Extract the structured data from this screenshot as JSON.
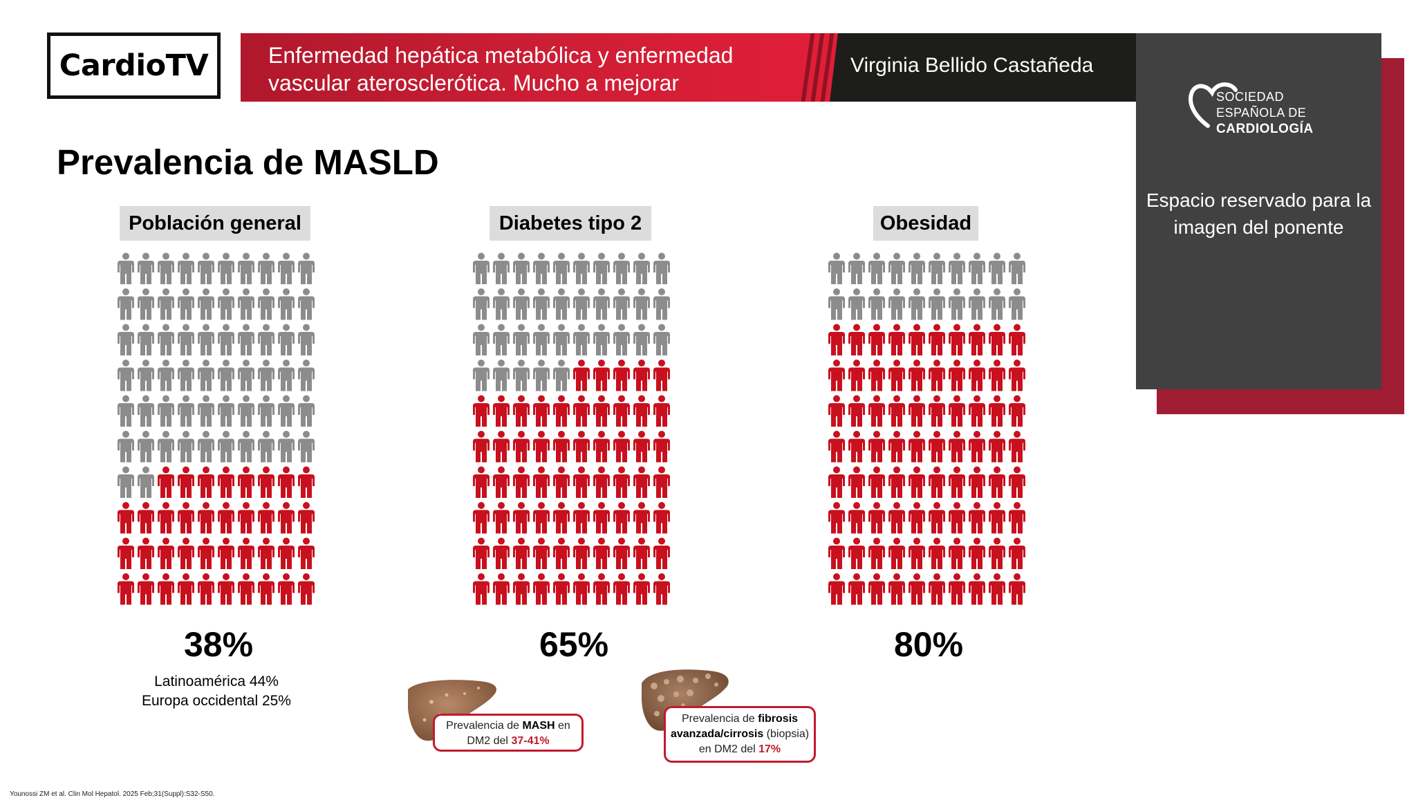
{
  "header": {
    "logo_text": "CardioTV",
    "title": "Enfermedad hepática metabólica y enfermedad vascular aterosclerótica. Mucho a mejorar",
    "speaker": "Virginia Bellido Castañeda"
  },
  "sidebar_panel": {
    "logo_line1": "SOCIEDAD",
    "logo_line2": "ESPAÑOLA DE",
    "logo_line3": "CARDIOLOGÍA",
    "note": "Espacio reservado para la imagen del ponente"
  },
  "main": {
    "title": "Prevalencia de MASLD",
    "groups": [
      {
        "label": "Población general",
        "percent_text": "38%",
        "affected_fraction": 0.38
      },
      {
        "label": "Diabetes tipo 2",
        "percent_text": "65%",
        "affected_fraction": 0.65
      },
      {
        "label": "Obesidad",
        "percent_text": "80%",
        "affected_fraction": 0.8
      }
    ],
    "regional_note_line1": "Latinoamérica 44%",
    "regional_note_line2": "Europa occidental 25%",
    "callout_mash": {
      "line1_pre": "Prevalencia de ",
      "line1_bold": "MASH",
      "line1_post": " en",
      "line2_pre": "DM2 del ",
      "line2_value": "37-41%"
    },
    "callout_fibrosis": {
      "line1_pre": "Prevalencia de ",
      "line1_bold": "fibrosis",
      "line2_bold": "avanzada/cirrosis",
      "line2_post": " (biopsia)",
      "line3_pre": "en DM2 del ",
      "line3_value": "17%"
    }
  },
  "footer": {
    "citation": "Younossi ZM et al. Clin Mol Hepatol. 2025 Feb;31(Suppl):S32-S50."
  },
  "colors": {
    "accent_red": "#c01a2e",
    "person_gray": "#8c8c8c",
    "person_red": "#c8101e",
    "panel_gray": "#414141",
    "panel_shadow": "#a11d33"
  }
}
